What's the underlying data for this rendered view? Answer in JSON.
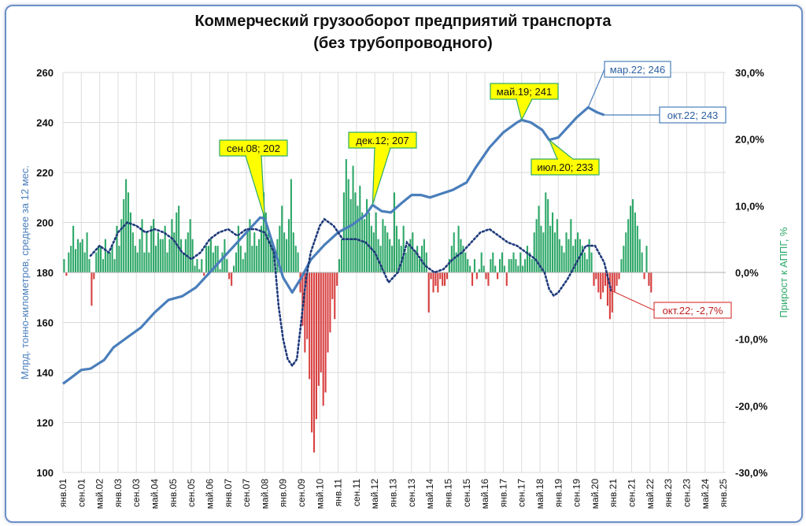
{
  "chart_data": {
    "type": "bar+line",
    "title": "Коммерческий грузооборот предприятий транспорта",
    "subtitle": "(без трубопроводного)",
    "ylabel_left": "Млрд. тонно-километров, среднее за 12 мес.",
    "ylabel_right": "Прирост к АППГ, %",
    "ylim_left": [
      100,
      260
    ],
    "ylim_right": [
      -30,
      30
    ],
    "yticks_left": [
      "100",
      "120",
      "140",
      "160",
      "180",
      "200",
      "220",
      "240",
      "260"
    ],
    "yticks_right": [
      "-30,0%",
      "-20,0%",
      "-10,0%",
      "0,0%",
      "10,0%",
      "20,0%",
      "30,0%"
    ],
    "grid": true,
    "x_ticks": [
      "янв.01",
      "сен.01",
      "май.02",
      "янв.03",
      "сен.03",
      "май.04",
      "янв.05",
      "сен.05",
      "май.06",
      "янв.07",
      "сен.07",
      "май.08",
      "янв.09",
      "сен.09",
      "май.10",
      "янв.11",
      "сен.11",
      "май.12",
      "янв.13",
      "сен.13",
      "май.14",
      "янв.15",
      "сен.15",
      "май.16",
      "янв.17",
      "сен.17",
      "май.18",
      "янв.19",
      "сен.19",
      "май.20",
      "янв.21",
      "сен.21",
      "май.22",
      "янв.23",
      "сен.23",
      "май.24",
      "янв.25"
    ],
    "series": [
      {
        "name": "Млрд. тонно-километров, среднее за 12 мес.",
        "axis": "left",
        "kind": "line",
        "color": "#4a7ebb",
        "points": [
          [
            0,
            135.5
          ],
          [
            3,
            137.5
          ],
          [
            8,
            141
          ],
          [
            12,
            141.5
          ],
          [
            18,
            145
          ],
          [
            22,
            150
          ],
          [
            28,
            154
          ],
          [
            34,
            158
          ],
          [
            40,
            164
          ],
          [
            46,
            169
          ],
          [
            52,
            170.5
          ],
          [
            58,
            174
          ],
          [
            64,
            180
          ],
          [
            70,
            186
          ],
          [
            76,
            192
          ],
          [
            80,
            196
          ],
          [
            86,
            202
          ],
          [
            88,
            201.5
          ],
          [
            92,
            190
          ],
          [
            96,
            178
          ],
          [
            100,
            172
          ],
          [
            104,
            178
          ],
          [
            108,
            185
          ],
          [
            114,
            191
          ],
          [
            120,
            196
          ],
          [
            126,
            199
          ],
          [
            132,
            203
          ],
          [
            135,
            207
          ],
          [
            139,
            204.5
          ],
          [
            143,
            204
          ],
          [
            148,
            208
          ],
          [
            152,
            211
          ],
          [
            156,
            211
          ],
          [
            160,
            210
          ],
          [
            165,
            211.5
          ],
          [
            170,
            213
          ],
          [
            176,
            216
          ],
          [
            180,
            222
          ],
          [
            186,
            230
          ],
          [
            192,
            236
          ],
          [
            198,
            240
          ],
          [
            200,
            241
          ],
          [
            204,
            240
          ],
          [
            209,
            237
          ],
          [
            212,
            233
          ],
          [
            216,
            234
          ],
          [
            220,
            238
          ],
          [
            224,
            242
          ],
          [
            229,
            246
          ],
          [
            233,
            244
          ],
          [
            236,
            243
          ]
        ]
      },
      {
        "name": "Прирост к АППГ, %",
        "axis": "right",
        "kind": "dotted",
        "color": "#1f3a7a",
        "points": [
          [
            12,
            2.5
          ],
          [
            16,
            4
          ],
          [
            20,
            3
          ],
          [
            24,
            6
          ],
          [
            28,
            7.5
          ],
          [
            32,
            7
          ],
          [
            36,
            6
          ],
          [
            40,
            6.5
          ],
          [
            44,
            6
          ],
          [
            48,
            5
          ],
          [
            52,
            3
          ],
          [
            56,
            2
          ],
          [
            60,
            3
          ],
          [
            64,
            5
          ],
          [
            68,
            6
          ],
          [
            72,
            6.5
          ],
          [
            76,
            5.5
          ],
          [
            80,
            6.5
          ],
          [
            84,
            6.5
          ],
          [
            88,
            6
          ],
          [
            92,
            3
          ],
          [
            94,
            -5
          ],
          [
            96,
            -10
          ],
          [
            98,
            -13
          ],
          [
            100,
            -14
          ],
          [
            102,
            -13
          ],
          [
            104,
            -7
          ],
          [
            106,
            -1
          ],
          [
            108,
            3
          ],
          [
            112,
            7
          ],
          [
            114,
            8
          ],
          [
            118,
            7
          ],
          [
            122,
            5
          ],
          [
            128,
            5
          ],
          [
            132,
            4.5
          ],
          [
            136,
            3
          ],
          [
            140,
            0
          ],
          [
            142,
            -1.5
          ],
          [
            146,
            0
          ],
          [
            148,
            2
          ],
          [
            150,
            4.5
          ],
          [
            154,
            3
          ],
          [
            158,
            1
          ],
          [
            162,
            0
          ],
          [
            166,
            0.5
          ],
          [
            170,
            2
          ],
          [
            174,
            3
          ],
          [
            178,
            4.5
          ],
          [
            182,
            6
          ],
          [
            186,
            6.5
          ],
          [
            190,
            5.5
          ],
          [
            194,
            4.5
          ],
          [
            198,
            4
          ],
          [
            202,
            3
          ],
          [
            206,
            2
          ],
          [
            210,
            0
          ],
          [
            212,
            -2.5
          ],
          [
            214,
            -3.5
          ],
          [
            216,
            -3
          ],
          [
            220,
            -1
          ],
          [
            224,
            1.5
          ],
          [
            228,
            4
          ],
          [
            232,
            4
          ],
          [
            236,
            1.5
          ],
          [
            239,
            -2.7
          ]
        ]
      },
      {
        "name": "Прирост к АППГ, % (столбцы)",
        "axis": "right",
        "kind": "bars",
        "color_pos": "#2da868",
        "color_neg": "#d94040",
        "months": 239,
        "values": [
          2,
          -0.5,
          3,
          4,
          7,
          3.5,
          5,
          4.5,
          5,
          3,
          6,
          2,
          -5,
          -1,
          3,
          4,
          4,
          2,
          5,
          3,
          3,
          4,
          2,
          7,
          4,
          8,
          11,
          14,
          12,
          9,
          6,
          4,
          3,
          5,
          8,
          3,
          6,
          3,
          7,
          8,
          4,
          6,
          5,
          5,
          7,
          3,
          5,
          8,
          6,
          9,
          10,
          5,
          3,
          5,
          6,
          8,
          5,
          1,
          2,
          0.5,
          2,
          -0.5,
          4,
          4,
          5,
          3,
          4,
          4,
          0.5,
          3,
          5,
          2,
          -1,
          -2,
          1,
          3,
          7,
          4,
          2,
          3,
          6,
          8,
          4,
          6,
          4,
          5,
          7,
          12,
          9,
          6,
          5,
          4,
          3,
          5,
          7,
          10,
          6,
          5,
          8,
          14,
          6,
          4,
          3,
          -3,
          -8,
          -12,
          -10,
          -16,
          -24,
          -27,
          -22,
          -17,
          -15,
          -20,
          -18,
          -12,
          -9,
          -4,
          -7,
          -2,
          2,
          5,
          12,
          17,
          14,
          11,
          16,
          12,
          10,
          13,
          9,
          8,
          11,
          9,
          7,
          6,
          9,
          5,
          4,
          8,
          7,
          6,
          5,
          4,
          12,
          7,
          5,
          4,
          7,
          3,
          4,
          5,
          6,
          3,
          4,
          2,
          4,
          5,
          3,
          -6,
          -1,
          -3,
          -2,
          -3,
          -1,
          -2,
          -2,
          -1,
          2,
          4,
          6,
          3,
          7,
          5,
          4,
          3,
          2,
          1,
          -2,
          2,
          -1,
          0.5,
          3,
          1,
          -1,
          -2,
          2,
          3,
          1,
          -1,
          2,
          3,
          1,
          -2,
          2,
          2,
          3,
          2,
          1,
          3,
          1,
          2,
          4,
          3,
          2,
          6,
          8,
          10,
          7,
          6,
          12,
          11,
          7,
          9,
          6,
          8,
          5,
          4,
          3,
          6,
          5,
          8,
          4,
          5,
          6,
          5,
          4,
          3,
          2,
          5,
          3,
          -2,
          -1,
          -3,
          -4,
          -3,
          -2,
          -5,
          -7,
          -6,
          -3,
          -2,
          -1,
          2,
          4,
          6,
          8,
          10,
          11,
          9,
          7,
          5,
          3,
          -1,
          4,
          -2,
          -3
        ]
      }
    ],
    "annotations": [
      {
        "text": "сен.08; 202",
        "style": "yellow"
      },
      {
        "text": "дек.12; 207",
        "style": "yellow"
      },
      {
        "text": "май.19; 241",
        "style": "yellow"
      },
      {
        "text": "июл.20; 233",
        "style": "yellow"
      },
      {
        "text": "мар.22; 246",
        "style": "white-blue"
      },
      {
        "text": "окт.22; 243",
        "style": "white-blue"
      },
      {
        "text": "окт.22; -2,7%",
        "style": "white-red"
      }
    ],
    "colors": {
      "line": "#4a7ebb",
      "dotted": "#1f3a7a",
      "bar_pos": "#2da868",
      "bar_neg": "#d94040",
      "left_label": "#4a7ebb",
      "right_label": "#2da868",
      "callout_yellow": "#ffff00",
      "callout_border": "#2da868"
    }
  }
}
